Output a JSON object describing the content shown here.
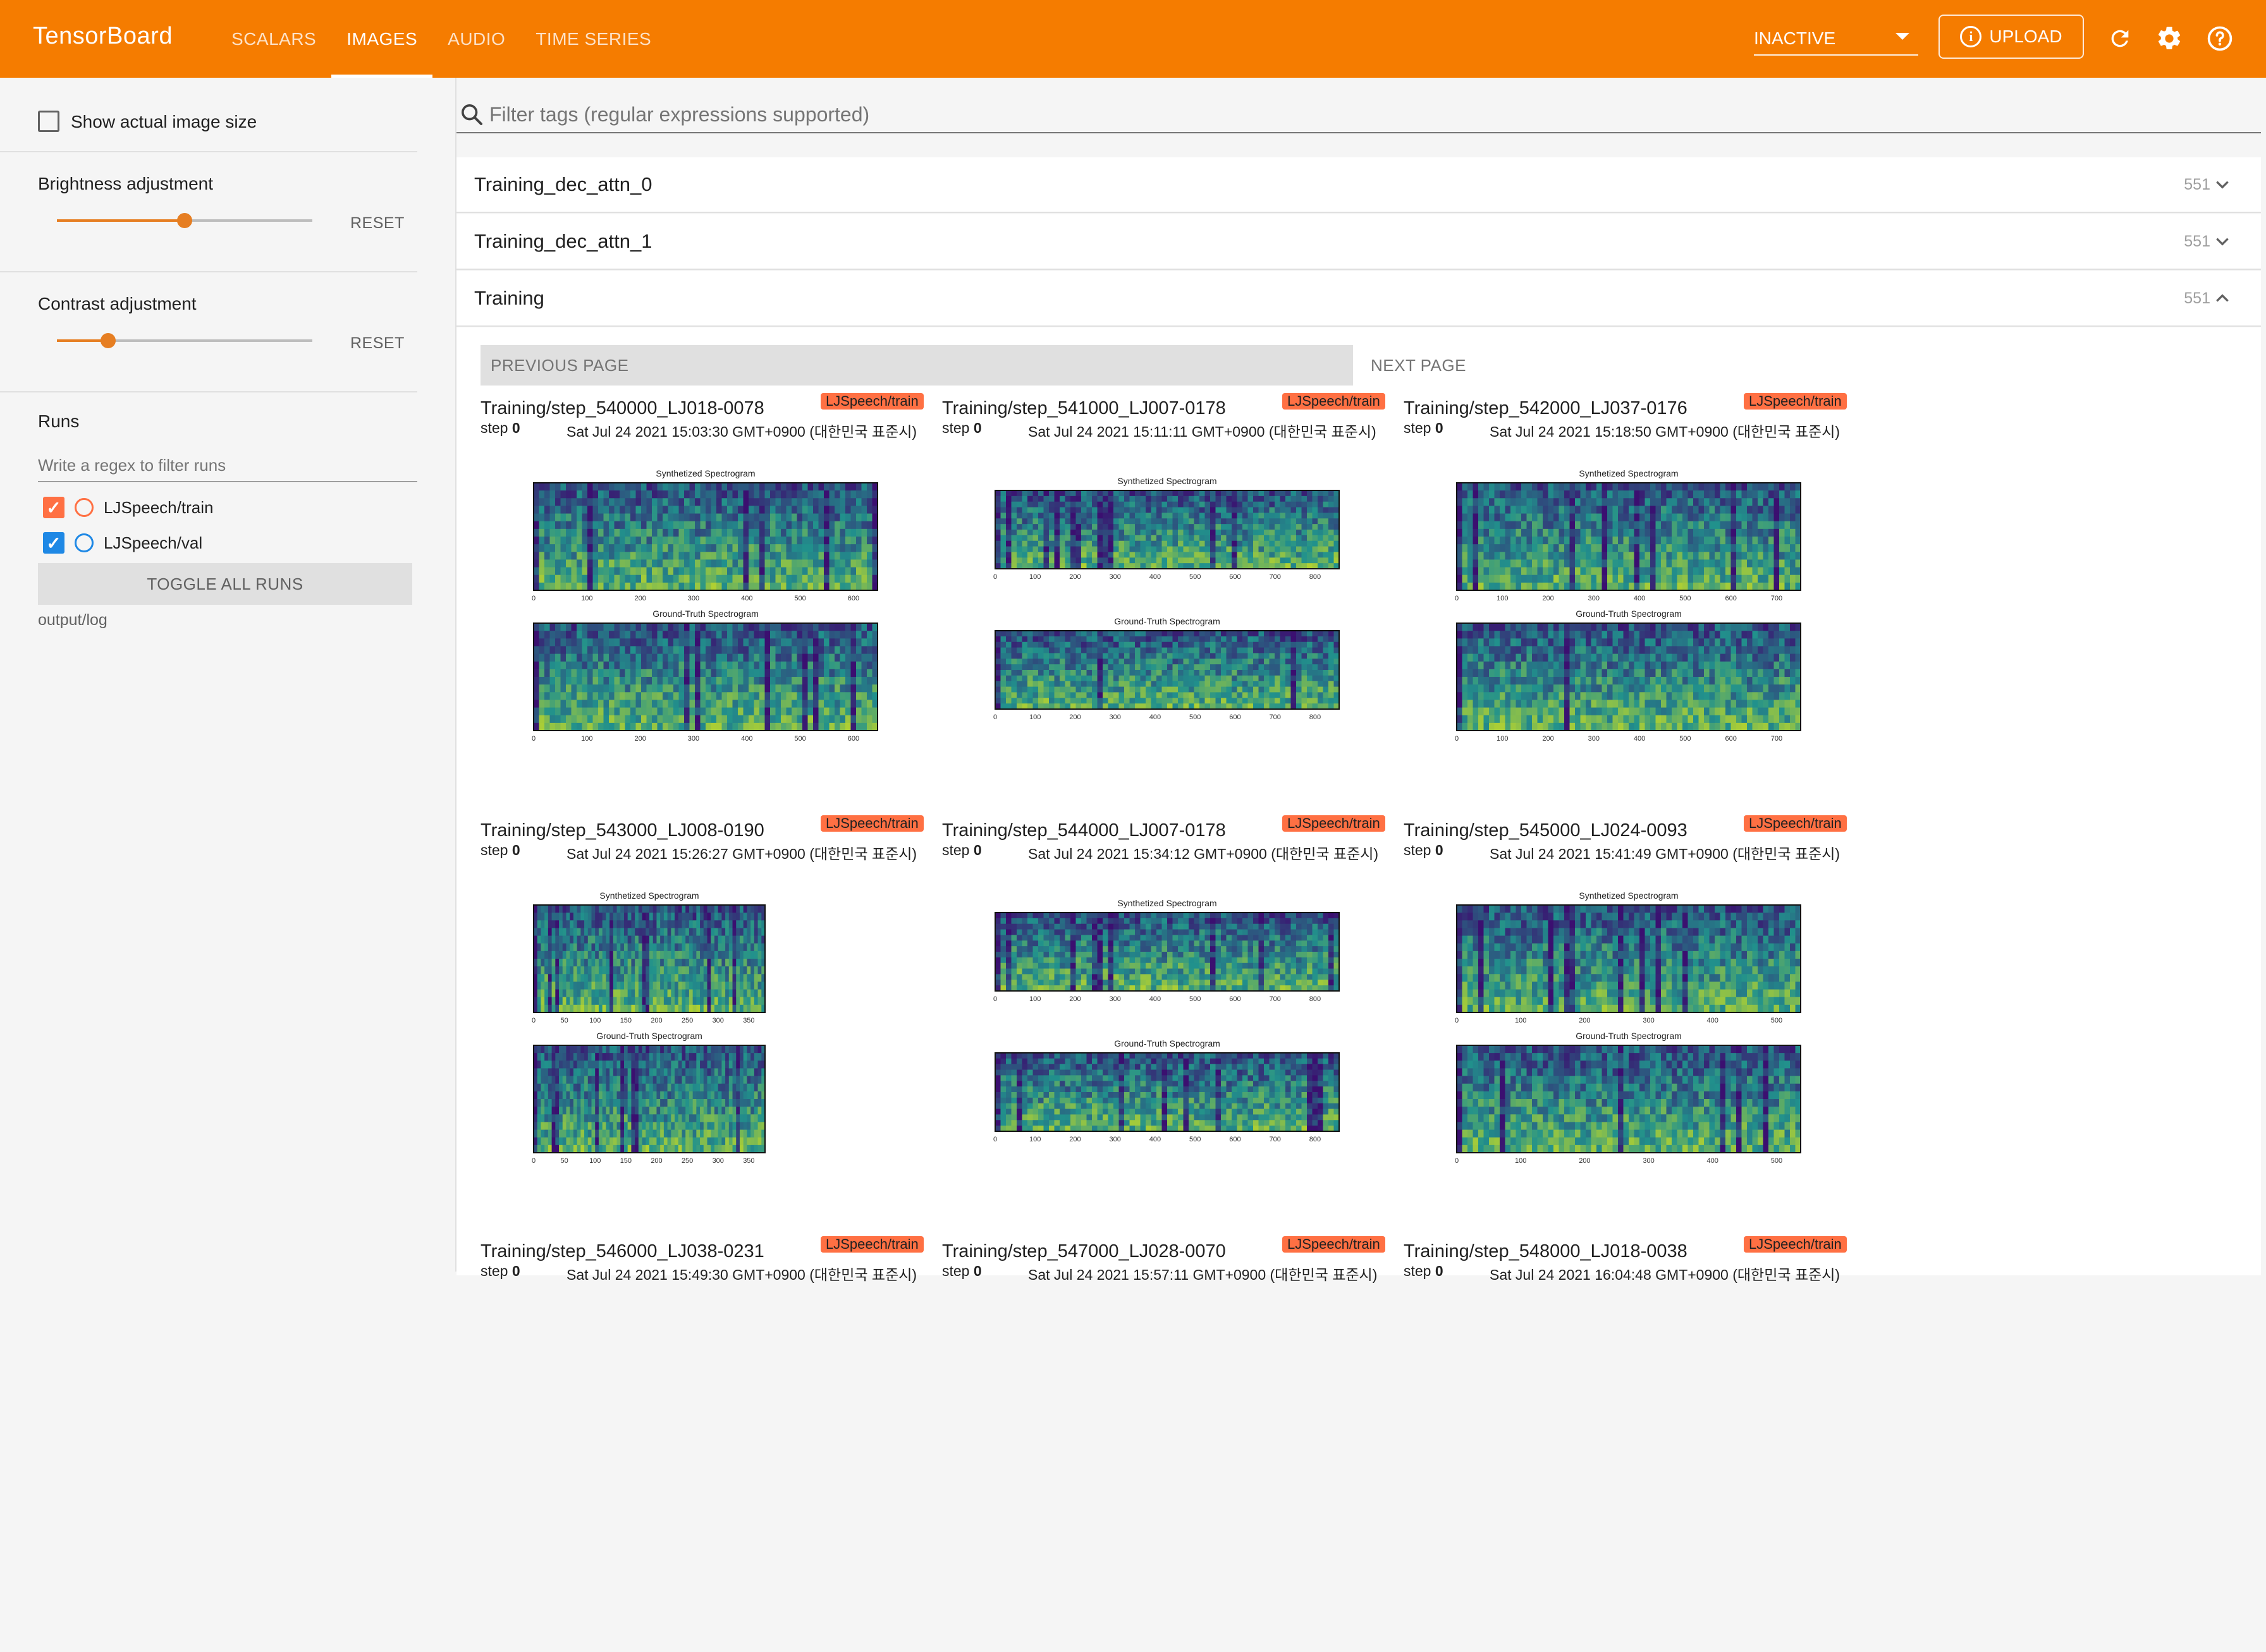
{
  "app": {
    "brand": "TensorBoard"
  },
  "nav": {
    "tabs": [
      {
        "label": "SCALARS"
      },
      {
        "label": "IMAGES"
      },
      {
        "label": "AUDIO"
      },
      {
        "label": "TIME SERIES"
      }
    ],
    "active_tab": "IMAGES",
    "run_selector": "INACTIVE",
    "upload_label": "UPLOAD",
    "icons": [
      "refresh-icon",
      "settings-icon",
      "help-icon"
    ]
  },
  "sidebar": {
    "show_actual_size": "Show actual image size",
    "brightness": {
      "label": "Brightness adjustment",
      "reset": "RESET",
      "value_fraction": 0.5
    },
    "contrast": {
      "label": "Contrast adjustment",
      "reset": "RESET",
      "value_fraction": 0.2
    },
    "runs_title": "Runs",
    "runs_filter_placeholder": "Write a regex to filter runs",
    "runs": [
      {
        "name": "LJSpeech/train",
        "checked": true,
        "color": "#ff7043"
      },
      {
        "name": "LJSpeech/val",
        "checked": true,
        "color": "#1e88e5"
      }
    ],
    "toggle_all": "TOGGLE ALL RUNS",
    "logdir": "output/log"
  },
  "main": {
    "filter_placeholder": "Filter tags (regular expressions supported)",
    "groups": [
      {
        "name": "Training_dec_attn_0",
        "count": "551",
        "expanded": false
      },
      {
        "name": "Training_dec_attn_1",
        "count": "551",
        "expanded": false
      },
      {
        "name": "Training",
        "count": "551",
        "expanded": true
      }
    ],
    "pager": {
      "prev": "PREVIOUS PAGE",
      "next": "NEXT PAGE"
    },
    "cards": [
      {
        "title": "Training/step_540000_LJ018-0078",
        "badge": "LJSpeech/train",
        "step_label": "step",
        "step": "0",
        "date": "Sat Jul 24 2021 15:03:30 GMT+0900 (대한민국 표준시)",
        "top_title": "Synthetized Spectrogram",
        "bottom_title": "Ground-Truth Spectrogram",
        "ticks": [
          "0",
          "100",
          "200",
          "300",
          "400",
          "500",
          "600"
        ]
      },
      {
        "title": "Training/step_541000_LJ007-0178",
        "badge": "LJSpeech/train",
        "step_label": "step",
        "step": "0",
        "date": "Sat Jul 24 2021 15:11:11 GMT+0900 (대한민국 표준시)",
        "top_title": "Synthetized Spectrogram",
        "bottom_title": "Ground-Truth Spectrogram",
        "ticks": [
          "0",
          "100",
          "200",
          "300",
          "400",
          "500",
          "600",
          "700",
          "800"
        ]
      },
      {
        "title": "Training/step_542000_LJ037-0176",
        "badge": "LJSpeech/train",
        "step_label": "step",
        "step": "0",
        "date": "Sat Jul 24 2021 15:18:50 GMT+0900 (대한민국 표준시)",
        "top_title": "Synthetized Spectrogram",
        "bottom_title": "Ground-Truth Spectrogram",
        "ticks": [
          "0",
          "100",
          "200",
          "300",
          "400",
          "500",
          "600",
          "700"
        ]
      },
      {
        "title": "Training/step_543000_LJ008-0190",
        "badge": "LJSpeech/train",
        "step_label": "step",
        "step": "0",
        "date": "Sat Jul 24 2021 15:26:27 GMT+0900 (대한민국 표준시)",
        "top_title": "Synthetized Spectrogram",
        "bottom_title": "Ground-Truth Spectrogram",
        "ticks": [
          "0",
          "50",
          "100",
          "150",
          "200",
          "250",
          "300",
          "350"
        ]
      },
      {
        "title": "Training/step_544000_LJ007-0178",
        "badge": "LJSpeech/train",
        "step_label": "step",
        "step": "0",
        "date": "Sat Jul 24 2021 15:34:12 GMT+0900 (대한민국 표준시)",
        "top_title": "Synthetized Spectrogram",
        "bottom_title": "Ground-Truth Spectrogram",
        "ticks": [
          "0",
          "100",
          "200",
          "300",
          "400",
          "500",
          "600",
          "700",
          "800"
        ]
      },
      {
        "title": "Training/step_545000_LJ024-0093",
        "badge": "LJSpeech/train",
        "step_label": "step",
        "step": "0",
        "date": "Sat Jul 24 2021 15:41:49 GMT+0900 (대한민국 표준시)",
        "top_title": "Synthetized Spectrogram",
        "bottom_title": "Ground-Truth Spectrogram",
        "ticks": [
          "0",
          "100",
          "200",
          "300",
          "400",
          "500"
        ]
      },
      {
        "title": "Training/step_546000_LJ038-0231",
        "badge": "LJSpeech/train",
        "step_label": "step",
        "step": "0",
        "date": "Sat Jul 24 2021 15:49:30 GMT+0900 (대한민국 표준시)",
        "top_title": "",
        "bottom_title": "",
        "ticks": []
      },
      {
        "title": "Training/step_547000_LJ028-0070",
        "badge": "LJSpeech/train",
        "step_label": "step",
        "step": "0",
        "date": "Sat Jul 24 2021 15:57:11 GMT+0900 (대한민국 표준시)",
        "top_title": "",
        "bottom_title": "",
        "ticks": []
      },
      {
        "title": "Training/step_548000_LJ018-0038",
        "badge": "LJSpeech/train",
        "step_label": "step",
        "step": "0",
        "date": "Sat Jul 24 2021 16:04:48 GMT+0900 (대한민국 표준시)",
        "top_title": "",
        "bottom_title": "",
        "ticks": []
      }
    ]
  },
  "colors": {
    "header": "#f57c00",
    "accent": "#e67e22",
    "badge": "#ff7043",
    "spectrogram_low": "#3b0f70",
    "spectrogram_mid": "#21918c",
    "spectrogram_high": "#d8e219"
  }
}
